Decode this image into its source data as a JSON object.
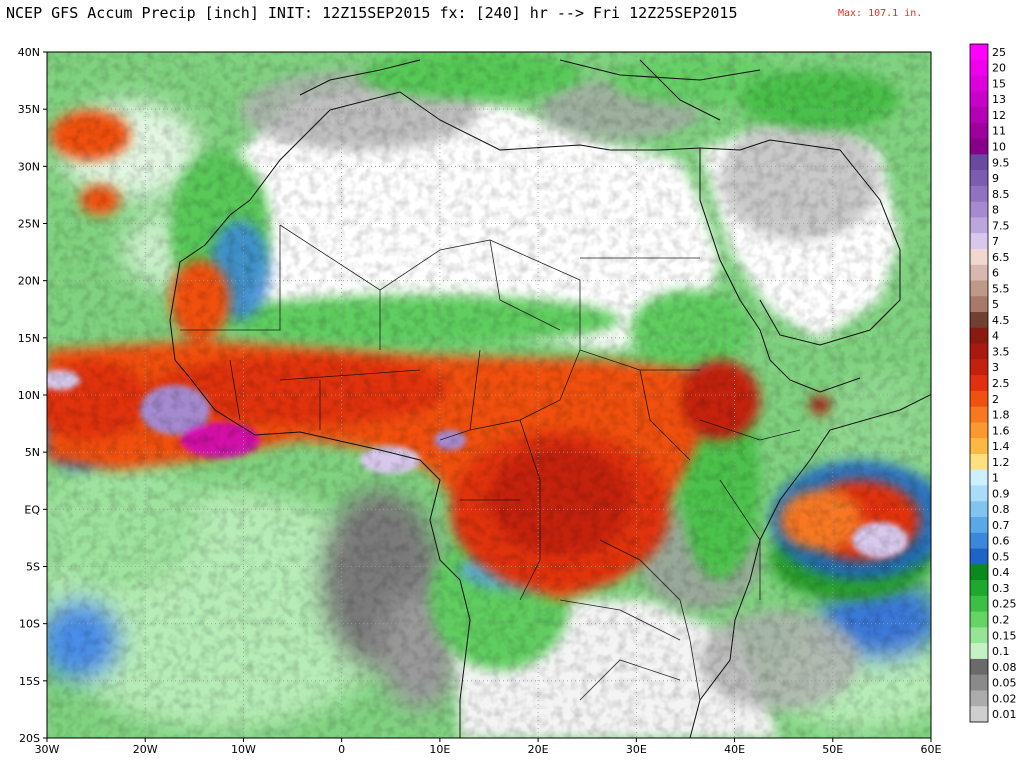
{
  "header": {
    "title": "NCEP GFS Accum Precip [inch] INIT: 12Z15SEP2015 fx: [240] hr --> Fri 12Z25SEP2015",
    "max_label": "Max: 107.1 in.",
    "max_color": "#e0301e"
  },
  "chart_data": {
    "type": "heatmap",
    "title": "NCEP GFS Accum Precip [inch] INIT: 12Z15SEP2015 fx: [240] hr --> Fri 12Z25SEP2015",
    "x_ticks": [
      "30W",
      "20W",
      "10W",
      "0",
      "10E",
      "20E",
      "30E",
      "40E",
      "50E",
      "60E"
    ],
    "x_values": [
      -30,
      -20,
      -10,
      0,
      10,
      20,
      30,
      40,
      50,
      60
    ],
    "xlim": [
      -30,
      60
    ],
    "y_ticks": [
      "40N",
      "35N",
      "30N",
      "25N",
      "20N",
      "15N",
      "10N",
      "5N",
      "EQ",
      "5S",
      "10S",
      "15S",
      "20S"
    ],
    "y_values": [
      40,
      35,
      30,
      25,
      20,
      15,
      10,
      5,
      0,
      -5,
      -10,
      -15,
      -20
    ],
    "ylim": [
      -20,
      40
    ],
    "ocean_color": "#7fd27f",
    "colorbar": [
      {
        "label": "25",
        "color": "#ff00ff"
      },
      {
        "label": "20",
        "color": "#ee00ee"
      },
      {
        "label": "15",
        "color": "#dd00dd"
      },
      {
        "label": "13",
        "color": "#c900c9"
      },
      {
        "label": "12",
        "color": "#b400b4"
      },
      {
        "label": "11",
        "color": "#9e009e"
      },
      {
        "label": "10",
        "color": "#880088"
      },
      {
        "label": "9.5",
        "color": "#6a4aa0"
      },
      {
        "label": "9",
        "color": "#7c5cb0"
      },
      {
        "label": "8.5",
        "color": "#8f72c0"
      },
      {
        "label": "8",
        "color": "#a58ad0"
      },
      {
        "label": "7.5",
        "color": "#bca6de"
      },
      {
        "label": "7",
        "color": "#d8c8ec"
      },
      {
        "label": "6.5",
        "color": "#f0d8d0"
      },
      {
        "label": "6",
        "color": "#d8b8ae"
      },
      {
        "label": "5.5",
        "color": "#c09888"
      },
      {
        "label": "5",
        "color": "#a87868"
      },
      {
        "label": "4.5",
        "color": "#704030"
      },
      {
        "label": "4",
        "color": "#8a1a10"
      },
      {
        "label": "3.5",
        "color": "#a81a10"
      },
      {
        "label": "3",
        "color": "#c42010"
      },
      {
        "label": "2.5",
        "color": "#e03010"
      },
      {
        "label": "2",
        "color": "#f05010"
      },
      {
        "label": "1.8",
        "color": "#f87820"
      },
      {
        "label": "1.6",
        "color": "#fb9830"
      },
      {
        "label": "1.4",
        "color": "#fcb840"
      },
      {
        "label": "1.2",
        "color": "#fde080"
      },
      {
        "label": "1",
        "color": "#cdefff"
      },
      {
        "label": "0.9",
        "color": "#a8dcf8"
      },
      {
        "label": "0.8",
        "color": "#80c4f0"
      },
      {
        "label": "0.7",
        "color": "#5aa8e8"
      },
      {
        "label": "0.6",
        "color": "#3a88dc"
      },
      {
        "label": "0.5",
        "color": "#1c64c8"
      },
      {
        "label": "0.4",
        "color": "#0a8a1e"
      },
      {
        "label": "0.3",
        "color": "#1ea82e"
      },
      {
        "label": "0.25",
        "color": "#3cc044"
      },
      {
        "label": "0.2",
        "color": "#64d464"
      },
      {
        "label": "0.15",
        "color": "#96e496"
      },
      {
        "label": "0.1",
        "color": "#c4f2c4"
      },
      {
        "label": "0.08",
        "color": "#6a6a6a"
      },
      {
        "label": "0.05",
        "color": "#8a8a8a"
      },
      {
        "label": "0.02",
        "color": "#acacac"
      },
      {
        "label": "0.01",
        "color": "#cfcfcf"
      }
    ],
    "grid": true,
    "legend_position": "right"
  }
}
